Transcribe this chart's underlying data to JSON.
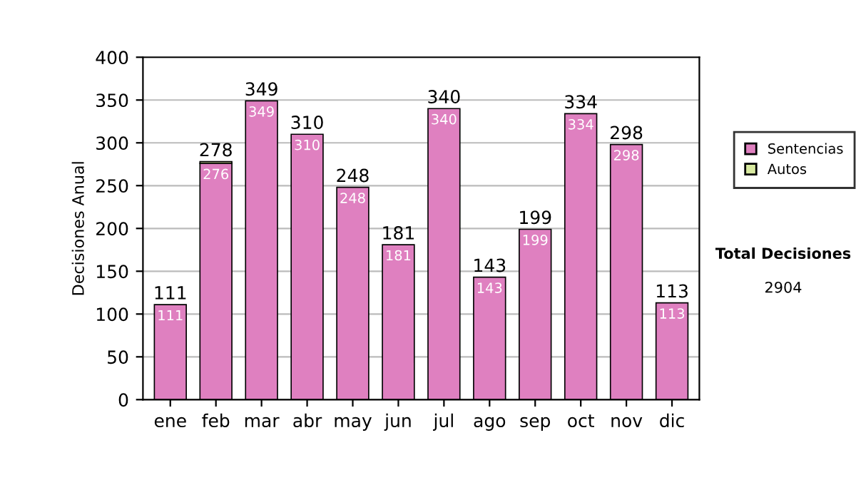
{
  "chart_data": {
    "type": "bar",
    "stacked": true,
    "ylabel": "Decisiones Anual",
    "categories": [
      "ene",
      "feb",
      "mar",
      "abr",
      "may",
      "jun",
      "jul",
      "ago",
      "sep",
      "oct",
      "nov",
      "dic"
    ],
    "series": [
      {
        "name": "Sentencias",
        "color": "#df80c0",
        "values": [
          111,
          276,
          349,
          310,
          248,
          181,
          340,
          143,
          199,
          334,
          298,
          113
        ],
        "value_labels": [
          "111",
          "276",
          "349",
          "310",
          "248",
          "181",
          "340",
          "143",
          "199",
          "334",
          "298",
          "113"
        ]
      },
      {
        "name": "Autos",
        "color": "#d8eaa0",
        "values": [
          null,
          2,
          null,
          null,
          null,
          null,
          null,
          null,
          null,
          null,
          null,
          null
        ]
      }
    ],
    "totals": [
      "111",
      "278",
      "349",
      "310",
      "248",
      "181",
      "340",
      "143",
      "199",
      "334",
      "298",
      "113"
    ],
    "ylim": [
      0,
      400
    ],
    "yticks": [
      0,
      50,
      100,
      150,
      200,
      250,
      300,
      350,
      400
    ],
    "grid": "y",
    "legend": "right",
    "annotations": [
      "Total Decisiones",
      "2904"
    ]
  }
}
